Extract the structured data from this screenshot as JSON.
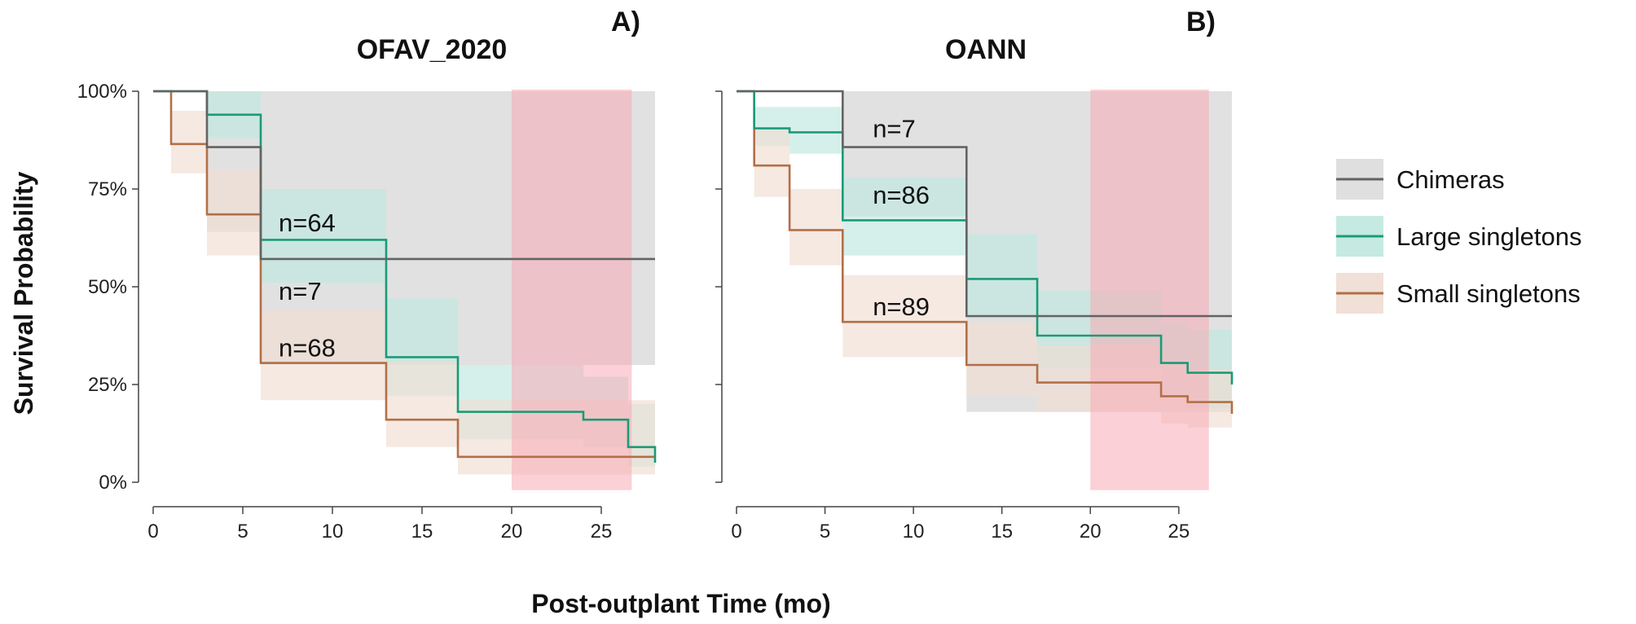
{
  "figure": {
    "xlabel": "Post-outplant Time (mo)",
    "ylabel": "Survival Probability"
  },
  "colors": {
    "chimeras": "#636363",
    "large": "#1b9a78",
    "small": "#b36f47",
    "chimeras_band": "#dcdcdc",
    "large_band": "#bfe8de",
    "small_band": "#f0ddd3",
    "highlight": "#f7a9b4"
  },
  "legend": {
    "placement": "right",
    "items": [
      {
        "key": "chimeras",
        "label": "Chimeras"
      },
      {
        "key": "large",
        "label": "Large singletons"
      },
      {
        "key": "small",
        "label": "Small singletons"
      }
    ]
  },
  "chart_data": [
    {
      "type": "line",
      "step": true,
      "title": "OFAV_2020",
      "panel_label": "A)",
      "xlim": [
        0,
        28
      ],
      "ylim": [
        0,
        1
      ],
      "xticks": [
        0,
        5,
        10,
        15,
        20,
        25
      ],
      "xtick_labels": [
        "0",
        "5",
        "10",
        "15",
        "20",
        "25"
      ],
      "yticks": [
        0,
        0.25,
        0.5,
        0.75,
        1
      ],
      "ytick_labels": [
        "0%",
        "25%",
        "50%",
        "75%",
        "100%"
      ],
      "highlight_range": [
        20,
        26.7
      ],
      "series": [
        {
          "key": "chimeras",
          "name": "Chimeras",
          "x": [
            0,
            3,
            6,
            28
          ],
          "y": [
            1.0,
            0.857,
            0.571,
            0.571
          ],
          "lower": [
            1.0,
            0.64,
            0.3,
            0.3
          ],
          "upper": [
            1.0,
            1.0,
            1.0,
            1.0
          ]
        },
        {
          "key": "large",
          "name": "Large singletons",
          "x": [
            0,
            3,
            6,
            13,
            17,
            24,
            26.5,
            28
          ],
          "y": [
            1.0,
            0.94,
            0.62,
            0.32,
            0.18,
            0.16,
            0.09,
            0.05
          ],
          "lower": [
            1.0,
            0.88,
            0.51,
            0.22,
            0.11,
            0.09,
            0.04,
            0.02
          ],
          "upper": [
            1.0,
            1.0,
            0.75,
            0.47,
            0.3,
            0.27,
            0.2,
            0.16
          ]
        },
        {
          "key": "small",
          "name": "Small singletons",
          "x": [
            0,
            1,
            3,
            6,
            13,
            17,
            28
          ],
          "y": [
            1.0,
            0.865,
            0.685,
            0.305,
            0.16,
            0.065,
            0.065
          ],
          "lower": [
            1.0,
            0.79,
            0.58,
            0.21,
            0.09,
            0.02,
            0.02
          ],
          "upper": [
            1.0,
            0.95,
            0.8,
            0.44,
            0.31,
            0.21,
            0.21
          ]
        }
      ],
      "annotations": [
        {
          "text": "n=64",
          "x": 7,
          "y": 0.665
        },
        {
          "text": "n=7",
          "x": 7,
          "y": 0.49
        },
        {
          "text": "n=68",
          "x": 7,
          "y": 0.345
        }
      ]
    },
    {
      "type": "line",
      "step": true,
      "title": "OANN",
      "panel_label": "B)",
      "xlim": [
        0,
        28
      ],
      "ylim": [
        0,
        1
      ],
      "xticks": [
        0,
        5,
        10,
        15,
        20,
        25
      ],
      "xtick_labels": [
        "0",
        "5",
        "10",
        "15",
        "20",
        "25"
      ],
      "yticks": [
        0,
        0.25,
        0.5,
        0.75,
        1
      ],
      "ytick_labels": [
        "",
        "",
        "",
        "",
        ""
      ],
      "highlight_range": [
        20,
        26.7
      ],
      "series": [
        {
          "key": "chimeras",
          "name": "Chimeras",
          "x": [
            0,
            6,
            13,
            28
          ],
          "y": [
            1.0,
            0.857,
            0.425,
            0.425
          ],
          "lower": [
            1.0,
            0.68,
            0.18,
            0.18
          ],
          "upper": [
            1.0,
            1.0,
            1.0,
            1.0
          ]
        },
        {
          "key": "large",
          "name": "Large singletons",
          "x": [
            0,
            1,
            3,
            6,
            13,
            17,
            24,
            25.5,
            28
          ],
          "y": [
            1.0,
            0.905,
            0.895,
            0.67,
            0.52,
            0.375,
            0.305,
            0.28,
            0.25
          ],
          "lower": [
            1.0,
            0.86,
            0.84,
            0.58,
            0.42,
            0.29,
            0.22,
            0.19,
            0.17
          ],
          "upper": [
            1.0,
            0.96,
            0.96,
            0.78,
            0.635,
            0.49,
            0.41,
            0.39,
            0.36
          ]
        },
        {
          "key": "small",
          "name": "Small singletons",
          "x": [
            0,
            1,
            3,
            6,
            13,
            17,
            24,
            25.5,
            28
          ],
          "y": [
            1.0,
            0.81,
            0.645,
            0.41,
            0.3,
            0.255,
            0.22,
            0.205,
            0.175
          ],
          "lower": [
            1.0,
            0.73,
            0.555,
            0.32,
            0.22,
            0.18,
            0.15,
            0.14,
            0.12
          ],
          "upper": [
            1.0,
            0.9,
            0.75,
            0.53,
            0.41,
            0.35,
            0.31,
            0.29,
            0.26
          ]
        }
      ],
      "annotations": [
        {
          "text": "n=7",
          "x": 7.7,
          "y": 0.905
        },
        {
          "text": "n=86",
          "x": 7.7,
          "y": 0.735
        },
        {
          "text": "n=89",
          "x": 7.7,
          "y": 0.45
        }
      ]
    }
  ]
}
